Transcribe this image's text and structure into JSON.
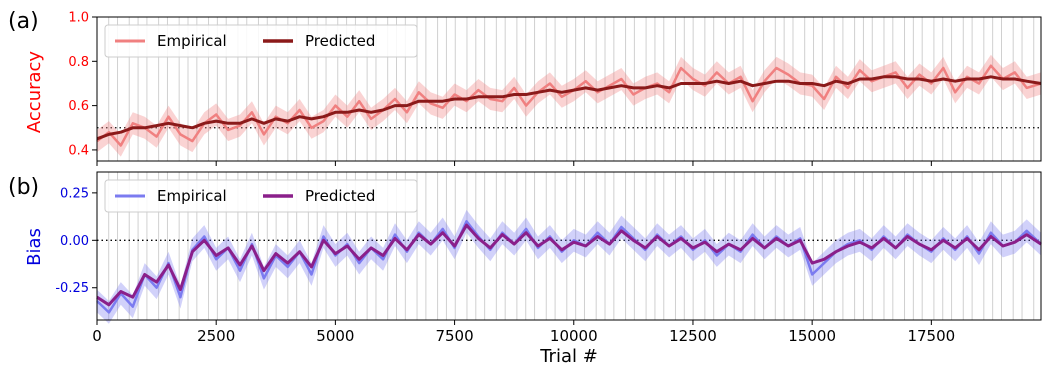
{
  "figure": {
    "panel_labels": [
      "(a)",
      "(b)"
    ],
    "xlabel": "Trial #"
  },
  "colors": {
    "accuracy_empirical": "#f08080",
    "accuracy_predicted": "#8b1a1a",
    "accuracy_axis": "#ff0000",
    "bias_empirical": "#7b7bf0",
    "bias_predicted": "#8a1f8a",
    "bias_axis": "#0000dd",
    "session_lines": "#d0d0d0"
  },
  "chart_data": [
    {
      "type": "line",
      "panel": "(a)",
      "ylabel": "Accuracy",
      "xlim": [
        0,
        19800
      ],
      "ylim": [
        0.35,
        1.0
      ],
      "yticks": [
        "0.4",
        "0.6",
        "0.8",
        "1.0"
      ],
      "ytick_values": [
        0.4,
        0.6,
        0.8,
        1.0
      ],
      "reference_line": 0.5,
      "grid": false,
      "legend": "top-left",
      "vertical_session_lines": true,
      "x": [
        0,
        250,
        500,
        750,
        1000,
        1250,
        1500,
        1750,
        2000,
        2250,
        2500,
        2750,
        3000,
        3250,
        3500,
        3750,
        4000,
        4250,
        4500,
        4750,
        5000,
        5250,
        5500,
        5750,
        6000,
        6250,
        6500,
        6750,
        7000,
        7250,
        7500,
        7750,
        8000,
        8250,
        8500,
        8750,
        9000,
        9250,
        9500,
        9750,
        10000,
        10250,
        10500,
        10750,
        11000,
        11250,
        11500,
        11750,
        12000,
        12250,
        12500,
        12750,
        13000,
        13250,
        13500,
        13750,
        14000,
        14250,
        14500,
        14750,
        15000,
        15250,
        15500,
        15750,
        16000,
        16250,
        16500,
        16750,
        17000,
        17250,
        17500,
        17750,
        18000,
        18250,
        18500,
        18750,
        19000,
        19250,
        19500,
        19800
      ],
      "series": [
        {
          "name": "Empirical",
          "values": [
            0.44,
            0.48,
            0.42,
            0.52,
            0.5,
            0.46,
            0.55,
            0.47,
            0.44,
            0.52,
            0.56,
            0.49,
            0.51,
            0.57,
            0.47,
            0.55,
            0.52,
            0.58,
            0.5,
            0.53,
            0.6,
            0.55,
            0.62,
            0.54,
            0.58,
            0.63,
            0.57,
            0.66,
            0.61,
            0.59,
            0.65,
            0.62,
            0.67,
            0.63,
            0.62,
            0.68,
            0.6,
            0.66,
            0.7,
            0.64,
            0.67,
            0.71,
            0.66,
            0.69,
            0.72,
            0.65,
            0.68,
            0.7,
            0.66,
            0.77,
            0.72,
            0.69,
            0.75,
            0.7,
            0.73,
            0.62,
            0.71,
            0.77,
            0.74,
            0.7,
            0.69,
            0.63,
            0.73,
            0.68,
            0.76,
            0.71,
            0.73,
            0.75,
            0.68,
            0.74,
            0.7,
            0.77,
            0.66,
            0.73,
            0.7,
            0.78,
            0.72,
            0.75,
            0.68,
            0.7
          ],
          "band": 0.05
        },
        {
          "name": "Predicted",
          "values": [
            0.45,
            0.47,
            0.48,
            0.5,
            0.5,
            0.51,
            0.52,
            0.51,
            0.5,
            0.52,
            0.53,
            0.52,
            0.52,
            0.54,
            0.52,
            0.54,
            0.53,
            0.55,
            0.54,
            0.55,
            0.57,
            0.57,
            0.58,
            0.57,
            0.58,
            0.6,
            0.6,
            0.62,
            0.62,
            0.62,
            0.63,
            0.63,
            0.64,
            0.64,
            0.64,
            0.65,
            0.65,
            0.66,
            0.67,
            0.66,
            0.67,
            0.68,
            0.67,
            0.68,
            0.69,
            0.68,
            0.68,
            0.69,
            0.68,
            0.7,
            0.7,
            0.7,
            0.71,
            0.7,
            0.71,
            0.69,
            0.7,
            0.71,
            0.71,
            0.7,
            0.7,
            0.69,
            0.71,
            0.7,
            0.72,
            0.72,
            0.73,
            0.73,
            0.72,
            0.72,
            0.71,
            0.72,
            0.71,
            0.72,
            0.72,
            0.73,
            0.72,
            0.72,
            0.71,
            0.7
          ]
        }
      ]
    },
    {
      "type": "line",
      "panel": "(b)",
      "xlabel": "Trial #",
      "ylabel": "Bias",
      "xlim": [
        0,
        19800
      ],
      "ylim": [
        -0.42,
        0.36
      ],
      "yticks": [
        "0.25",
        "0.00",
        "-0.25"
      ],
      "ytick_values": [
        0.25,
        0.0,
        -0.25
      ],
      "xticks": [
        "0",
        "2500",
        "5000",
        "7500",
        "10000",
        "12500",
        "15000",
        "17500"
      ],
      "xtick_values": [
        0,
        2500,
        5000,
        7500,
        10000,
        12500,
        15000,
        17500
      ],
      "reference_line": 0.0,
      "grid": false,
      "legend": "top-left",
      "vertical_session_lines": true,
      "x": [
        0,
        250,
        500,
        750,
        1000,
        1250,
        1500,
        1750,
        2000,
        2250,
        2500,
        2750,
        3000,
        3250,
        3500,
        3750,
        4000,
        4250,
        4500,
        4750,
        5000,
        5250,
        5500,
        5750,
        6000,
        6250,
        6500,
        6750,
        7000,
        7250,
        7500,
        7750,
        8000,
        8250,
        8500,
        8750,
        9000,
        9250,
        9500,
        9750,
        10000,
        10250,
        10500,
        10750,
        11000,
        11250,
        11500,
        11750,
        12000,
        12250,
        12500,
        12750,
        13000,
        13250,
        13500,
        13750,
        14000,
        14250,
        14500,
        14750,
        15000,
        15250,
        15500,
        15750,
        16000,
        16250,
        16500,
        16750,
        17000,
        17250,
        17500,
        17750,
        18000,
        18250,
        18500,
        18750,
        19000,
        19250,
        19500,
        19800
      ],
      "series": [
        {
          "name": "Empirical",
          "values": [
            -0.32,
            -0.38,
            -0.28,
            -0.35,
            -0.18,
            -0.25,
            -0.12,
            -0.3,
            -0.05,
            0.02,
            -0.1,
            -0.04,
            -0.16,
            -0.02,
            -0.2,
            -0.08,
            -0.14,
            -0.06,
            -0.18,
            0.02,
            -0.08,
            -0.02,
            -0.12,
            -0.04,
            -0.1,
            0.03,
            -0.06,
            0.04,
            -0.02,
            0.06,
            -0.04,
            0.1,
            0.02,
            -0.05,
            0.04,
            -0.02,
            0.06,
            -0.04,
            0.02,
            -0.06,
            0.0,
            -0.03,
            0.04,
            -0.02,
            0.07,
            0.01,
            -0.05,
            0.03,
            -0.03,
            0.02,
            -0.05,
            0.0,
            -0.08,
            -0.02,
            -0.06,
            0.03,
            -0.04,
            0.02,
            -0.03,
            0.01,
            -0.18,
            -0.12,
            -0.06,
            -0.02,
            0.0,
            -0.05,
            0.02,
            -0.04,
            0.03,
            -0.02,
            -0.06,
            0.01,
            -0.05,
            0.02,
            -0.07,
            0.04,
            -0.03,
            -0.01,
            0.05,
            -0.02
          ],
          "band": 0.06
        },
        {
          "name": "Predicted",
          "values": [
            -0.3,
            -0.34,
            -0.27,
            -0.3,
            -0.18,
            -0.22,
            -0.13,
            -0.26,
            -0.06,
            0.0,
            -0.08,
            -0.04,
            -0.13,
            -0.03,
            -0.16,
            -0.07,
            -0.12,
            -0.06,
            -0.14,
            0.0,
            -0.07,
            -0.03,
            -0.1,
            -0.04,
            -0.08,
            0.01,
            -0.05,
            0.03,
            -0.02,
            0.04,
            -0.03,
            0.08,
            0.01,
            -0.04,
            0.03,
            -0.02,
            0.04,
            -0.03,
            0.01,
            -0.05,
            -0.01,
            -0.03,
            0.02,
            -0.02,
            0.05,
            0.0,
            -0.04,
            0.02,
            -0.03,
            0.01,
            -0.04,
            -0.01,
            -0.06,
            -0.02,
            -0.05,
            0.01,
            -0.04,
            0.01,
            -0.03,
            0.0,
            -0.12,
            -0.1,
            -0.06,
            -0.03,
            -0.01,
            -0.04,
            0.01,
            -0.04,
            0.02,
            -0.02,
            -0.05,
            0.0,
            -0.04,
            0.01,
            -0.05,
            0.02,
            -0.03,
            -0.01,
            0.03,
            -0.02
          ]
        }
      ]
    }
  ]
}
